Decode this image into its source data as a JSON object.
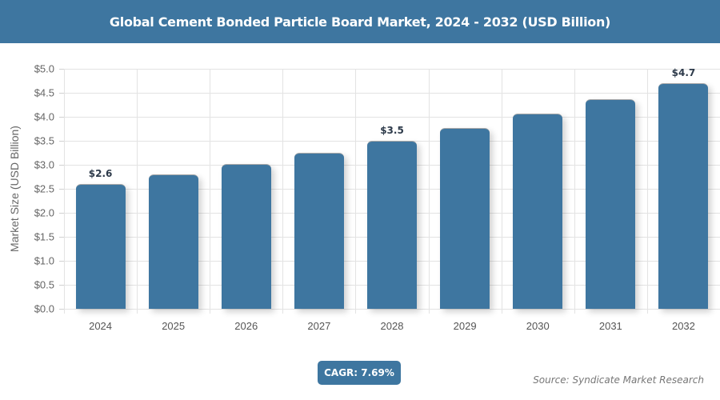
{
  "header": {
    "title": "Global Cement Bonded Particle Board Market, 2024 - 2032 (USD Billion)"
  },
  "footer": {
    "cagr": "CAGR: 7.69%",
    "source": "Source: Syndicate Market Research"
  },
  "colors": {
    "bar": "#3e76a0",
    "header": "#3e76a0",
    "label": "#2d3a4a"
  },
  "chart_data": {
    "type": "bar",
    "title": "Global Cement Bonded Particle Board Market, 2024 - 2032 (USD Billion)",
    "xlabel": "",
    "ylabel": "Market Size (USD Billion)",
    "ylim": [
      0,
      5
    ],
    "yticks": [
      "$0.0",
      "$0.5",
      "$1.0",
      "$1.5",
      "$2.0",
      "$2.5",
      "$3.0",
      "$3.5",
      "$4.0",
      "$4.5",
      "$5.0"
    ],
    "categories": [
      "2024",
      "2025",
      "2026",
      "2027",
      "2028",
      "2029",
      "2030",
      "2031",
      "2032"
    ],
    "values": [
      2.6,
      2.8,
      3.02,
      3.25,
      3.5,
      3.77,
      4.06,
      4.37,
      4.7
    ],
    "data_labels": [
      {
        "index": 0,
        "text": "$2.6"
      },
      {
        "index": 4,
        "text": "$3.5"
      },
      {
        "index": 8,
        "text": "$4.7"
      }
    ],
    "grid": true,
    "legend": null,
    "annotations": [
      "CAGR: 7.69%"
    ]
  }
}
